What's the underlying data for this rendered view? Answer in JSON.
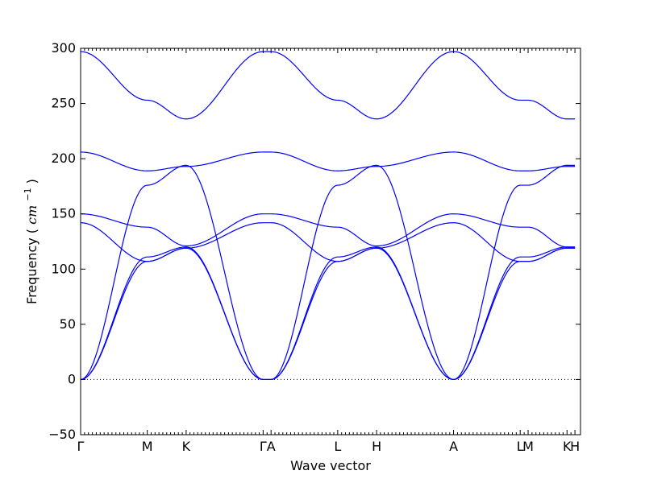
{
  "chart_data": {
    "type": "line",
    "title": "",
    "xlabel": "Wave vector",
    "ylabel": "Frequency",
    "ylabel_unit": "cm",
    "ylabel_unit_exp": "−1",
    "ylim": [
      -50,
      300
    ],
    "yticks": [
      -50,
      0,
      50,
      100,
      150,
      200,
      250,
      300
    ],
    "xlim": [
      0,
      6.3
    ],
    "xtick_labels": [
      {
        "x": 0,
        "label": "Γ"
      },
      {
        "x": 0.84,
        "label": "M"
      },
      {
        "x": 1.33,
        "label": "K"
      },
      {
        "x": 2.3,
        "label": "Γ"
      },
      {
        "x": 2.4,
        "label": "A"
      },
      {
        "x": 3.24,
        "label": "L"
      },
      {
        "x": 3.73,
        "label": "H"
      },
      {
        "x": 4.7,
        "label": "A"
      },
      {
        "x": 5.54,
        "label": "L"
      },
      {
        "x": 5.64,
        "label": "M"
      },
      {
        "x": 6.13,
        "label": "K"
      },
      {
        "x": 6.23,
        "label": "H"
      }
    ],
    "zero_line": true,
    "line_color": "#0000ff",
    "series": [
      {
        "x": [
          0,
          0.84,
          1.33,
          2.3,
          2.4,
          3.24,
          3.73,
          4.7,
          5.54,
          5.64,
          6.13,
          6.23
        ],
        "values": [
          0,
          107,
          119,
          0,
          0,
          107,
          119,
          0,
          107,
          107,
          119,
          119
        ]
      },
      {
        "x": [
          0,
          0.84,
          1.33,
          2.3,
          2.4,
          3.24,
          3.73,
          4.7,
          5.54,
          5.64,
          6.13,
          6.23
        ],
        "values": [
          0,
          111,
          120,
          0,
          0,
          111,
          120,
          0,
          111,
          111,
          120,
          120
        ]
      },
      {
        "x": [
          0,
          0.84,
          1.33,
          2.3,
          2.4,
          3.24,
          3.73,
          4.7,
          5.54,
          5.64,
          6.13,
          6.23
        ],
        "values": [
          0,
          176,
          194,
          0,
          0,
          176,
          194,
          0,
          176,
          176,
          194,
          194
        ]
      },
      {
        "x": [
          0,
          0.84,
          1.33,
          2.3,
          2.4,
          3.24,
          3.73,
          4.7,
          5.54,
          5.64,
          6.13,
          6.23
        ],
        "values": [
          142,
          107,
          119,
          142,
          142,
          107,
          119,
          142,
          107,
          107,
          119,
          119
        ]
      },
      {
        "x": [
          0,
          0.84,
          1.33,
          2.3,
          2.4,
          3.24,
          3.73,
          4.7,
          5.54,
          5.64,
          6.13,
          6.23
        ],
        "values": [
          150,
          138,
          121,
          150,
          150,
          138,
          121,
          150,
          138,
          138,
          120,
          120
        ]
      },
      {
        "x": [
          0,
          0.84,
          1.33,
          2.3,
          2.4,
          3.24,
          3.73,
          4.7,
          5.54,
          5.64,
          6.13,
          6.23
        ],
        "values": [
          206,
          189,
          193,
          206,
          206,
          189,
          193,
          206,
          189,
          189,
          193,
          193
        ]
      },
      {
        "x": [
          0,
          0.84,
          1.33,
          2.3,
          2.4,
          3.24,
          3.73,
          4.7,
          5.54,
          5.64,
          6.13,
          6.23
        ],
        "values": [
          297,
          253,
          236,
          297,
          297,
          253,
          236,
          297,
          253,
          253,
          236,
          236
        ]
      }
    ]
  }
}
